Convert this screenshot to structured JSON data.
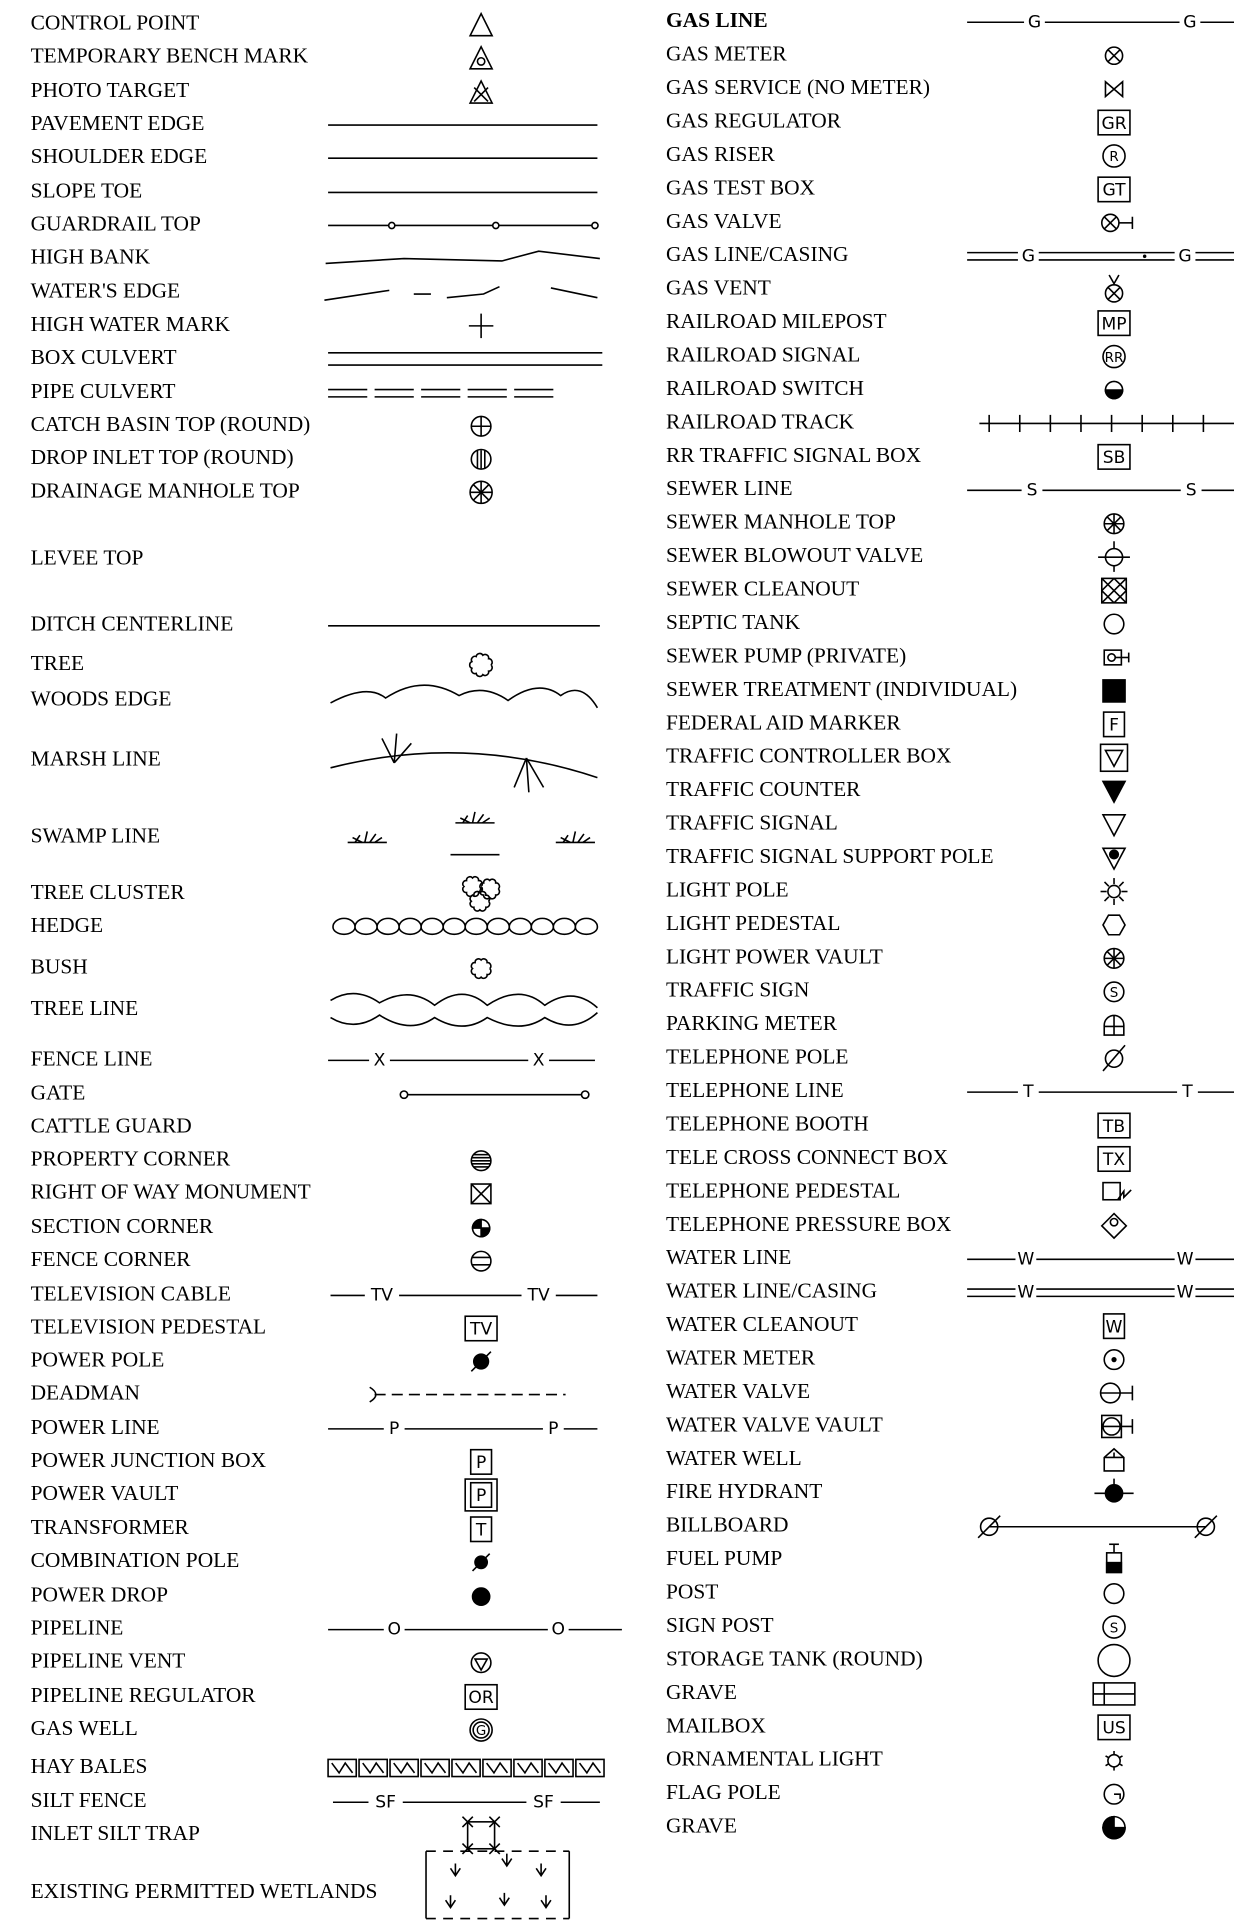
{
  "left": [
    {
      "label": "CONTROL POINT"
    },
    {
      "label": "TEMPORARY BENCH MARK"
    },
    {
      "label": "PHOTO TARGET"
    },
    {
      "label": "PAVEMENT EDGE"
    },
    {
      "label": "SHOULDER EDGE"
    },
    {
      "label": "SLOPE TOE"
    },
    {
      "label": "GUARDRAIL TOP"
    },
    {
      "label": "HIGH BANK"
    },
    {
      "label": "WATER'S EDGE"
    },
    {
      "label": "HIGH WATER MARK"
    },
    {
      "label": "BOX CULVERT"
    },
    {
      "label": "PIPE CULVERT"
    },
    {
      "label": "CATCH BASIN TOP (ROUND)"
    },
    {
      "label": "DROP INLET TOP (ROUND)"
    },
    {
      "label": "DRAINAGE MANHOLE TOP"
    },
    {
      "label": "LEVEE TOP"
    },
    {
      "label": "DITCH CENTERLINE"
    },
    {
      "label": "TREE"
    },
    {
      "label": "WOODS EDGE"
    },
    {
      "label": "MARSH LINE"
    },
    {
      "label": "SWAMP LINE"
    },
    {
      "label": "TREE CLUSTER"
    },
    {
      "label": "HEDGE"
    },
    {
      "label": "BUSH"
    },
    {
      "label": "TREE LINE"
    },
    {
      "label": "FENCE LINE",
      "marks": [
        "X",
        "X"
      ]
    },
    {
      "label": "GATE"
    },
    {
      "label": "CATTLE GUARD"
    },
    {
      "label": "PROPERTY CORNER"
    },
    {
      "label": "RIGHT OF WAY MONUMENT"
    },
    {
      "label": "SECTION CORNER"
    },
    {
      "label": "FENCE CORNER"
    },
    {
      "label": "TELEVISION CABLE",
      "marks": [
        "TV",
        "TV"
      ]
    },
    {
      "label": "TELEVISION PEDESTAL",
      "marks": [
        "TV"
      ]
    },
    {
      "label": "POWER POLE"
    },
    {
      "label": "DEADMAN"
    },
    {
      "label": "POWER LINE",
      "marks": [
        "P",
        "P"
      ]
    },
    {
      "label": "POWER JUNCTION BOX",
      "marks": [
        "P"
      ]
    },
    {
      "label": "POWER VAULT",
      "marks": [
        "P"
      ]
    },
    {
      "label": "TRANSFORMER",
      "marks": [
        "T"
      ]
    },
    {
      "label": "COMBINATION POLE"
    },
    {
      "label": "POWER DROP"
    },
    {
      "label": "PIPELINE",
      "marks": [
        "O",
        "O"
      ]
    },
    {
      "label": "PIPELINE VENT"
    },
    {
      "label": "PIPELINE REGULATOR",
      "marks": [
        "OR"
      ]
    },
    {
      "label": "GAS WELL",
      "marks": [
        "G"
      ]
    },
    {
      "label": "HAY BALES"
    },
    {
      "label": "SILT FENCE",
      "marks": [
        "SF",
        "SF"
      ]
    },
    {
      "label": "INLET SILT TRAP"
    },
    {
      "label": "EXISTING PERMITTED WETLANDS"
    }
  ],
  "right": [
    {
      "label": "GAS LINE",
      "marks": [
        "G",
        "G"
      ]
    },
    {
      "label": "GAS METER"
    },
    {
      "label": "GAS SERVICE (NO METER)"
    },
    {
      "label": "GAS REGULATOR",
      "marks": [
        "GR"
      ]
    },
    {
      "label": "GAS RISER",
      "marks": [
        "R"
      ]
    },
    {
      "label": "GAS TEST BOX",
      "marks": [
        "GT"
      ]
    },
    {
      "label": "GAS VALVE"
    },
    {
      "label": "GAS LINE/CASING",
      "marks": [
        "G",
        "G"
      ]
    },
    {
      "label": "GAS VENT"
    },
    {
      "label": "RAILROAD MILEPOST",
      "marks": [
        "MP"
      ]
    },
    {
      "label": "RAILROAD SIGNAL",
      "marks": [
        "RR"
      ]
    },
    {
      "label": "RAILROAD SWITCH"
    },
    {
      "label": "RAILROAD TRACK"
    },
    {
      "label": "RR TRAFFIC SIGNAL BOX",
      "marks": [
        "SB"
      ]
    },
    {
      "label": "SEWER LINE",
      "marks": [
        "S",
        "S"
      ]
    },
    {
      "label": "SEWER MANHOLE TOP"
    },
    {
      "label": "SEWER BLOWOUT VALVE"
    },
    {
      "label": "SEWER CLEANOUT"
    },
    {
      "label": "SEPTIC TANK"
    },
    {
      "label": "SEWER PUMP (PRIVATE)"
    },
    {
      "label": "SEWER TREATMENT (INDIVIDUAL)"
    },
    {
      "label": "FEDERAL AID MARKER",
      "marks": [
        "F"
      ]
    },
    {
      "label": "TRAFFIC CONTROLLER BOX"
    },
    {
      "label": "TRAFFIC COUNTER"
    },
    {
      "label": "TRAFFIC SIGNAL"
    },
    {
      "label": "TRAFFIC SIGNAL SUPPORT POLE"
    },
    {
      "label": "LIGHT POLE"
    },
    {
      "label": "LIGHT PEDESTAL"
    },
    {
      "label": "LIGHT POWER VAULT"
    },
    {
      "label": "TRAFFIC SIGN",
      "marks": [
        "S"
      ]
    },
    {
      "label": "PARKING METER"
    },
    {
      "label": "TELEPHONE POLE"
    },
    {
      "label": "TELEPHONE LINE",
      "marks": [
        "T",
        "T"
      ]
    },
    {
      "label": "TELEPHONE BOOTH",
      "marks": [
        "TB"
      ]
    },
    {
      "label": "TELE CROSS CONNECT BOX",
      "marks": [
        "TX"
      ]
    },
    {
      "label": "TELEPHONE PEDESTAL"
    },
    {
      "label": "TELEPHONE PRESSURE BOX"
    },
    {
      "label": "WATER LINE",
      "marks": [
        "W",
        "W"
      ]
    },
    {
      "label": "WATER LINE/CASING",
      "marks": [
        "W",
        "W"
      ]
    },
    {
      "label": "WATER CLEANOUT",
      "marks": [
        "W"
      ]
    },
    {
      "label": "WATER METER"
    },
    {
      "label": "WATER VALVE"
    },
    {
      "label": "WATER VALVE VAULT"
    },
    {
      "label": "WATER WELL"
    },
    {
      "label": "FIRE HYDRANT"
    },
    {
      "label": "BILLBOARD"
    },
    {
      "label": "FUEL PUMP"
    },
    {
      "label": "POST"
    },
    {
      "label": "SIGN POST",
      "marks": [
        "S"
      ]
    },
    {
      "label": "STORAGE TANK (ROUND)"
    },
    {
      "label": "GRAVE"
    },
    {
      "label": "MAILBOX",
      "marks": [
        "US"
      ]
    },
    {
      "label": "ORNAMENTAL LIGHT"
    },
    {
      "label": "FLAG POLE"
    },
    {
      "label": "GRAVE"
    }
  ]
}
